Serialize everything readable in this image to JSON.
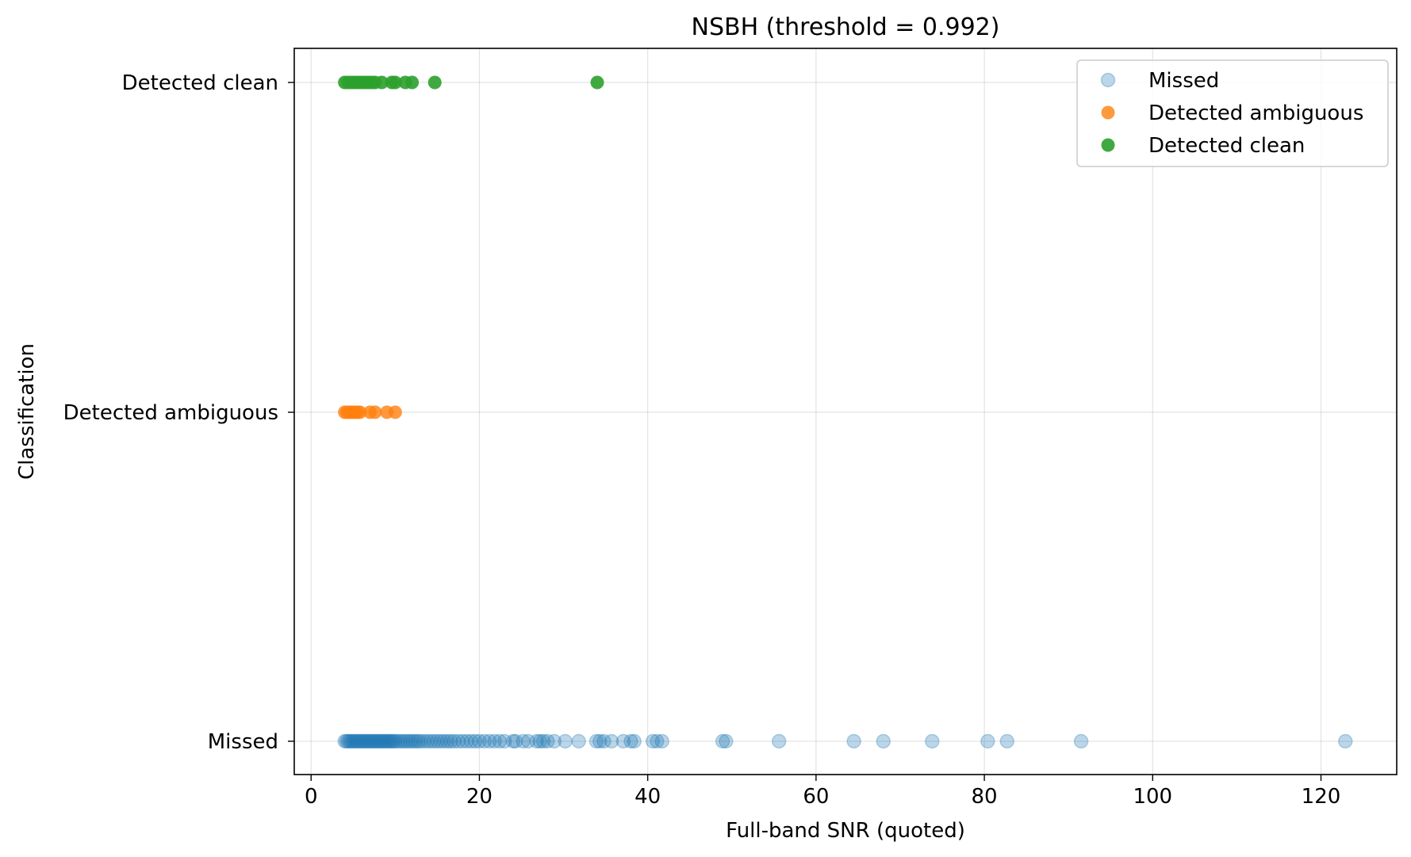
{
  "chart_data": {
    "type": "scatter",
    "title": "NSBH  (threshold = 0.992)",
    "xlabel": "Full-band SNR (quoted)",
    "ylabel": "Classification",
    "xlim": [
      -2,
      129
    ],
    "xticks": [
      0,
      20,
      40,
      60,
      80,
      100,
      120
    ],
    "xtick_labels": [
      "0",
      "20",
      "40",
      "60",
      "80",
      "100",
      "120"
    ],
    "categories": [
      "Missed",
      "Detected ambiguous",
      "Detected clean"
    ],
    "grid": true,
    "legend_position": "top-right",
    "series": [
      {
        "name": "Missed",
        "category": "Missed",
        "color": "#1f77b4",
        "alpha": 0.3,
        "x": [
          4.0,
          4.2,
          4.4,
          4.6,
          4.8,
          5.0,
          5.2,
          5.4,
          5.6,
          5.8,
          6.0,
          6.2,
          6.4,
          6.6,
          6.8,
          7.0,
          7.2,
          7.4,
          7.6,
          7.8,
          8.0,
          8.2,
          8.4,
          8.6,
          8.8,
          9.0,
          9.2,
          9.4,
          9.6,
          9.8,
          10.0,
          10.3,
          10.6,
          10.9,
          11.2,
          11.5,
          11.8,
          12.1,
          12.4,
          12.7,
          13.0,
          13.4,
          13.8,
          14.2,
          14.6,
          15.0,
          15.4,
          15.8,
          16.2,
          16.6,
          17.0,
          17.5,
          18.0,
          18.5,
          19.0,
          19.5,
          20.0,
          20.6,
          21.2,
          21.8,
          22.4,
          23.0,
          24.0,
          24.3,
          25.2,
          25.8,
          26.8,
          27.2,
          27.6,
          28.1,
          28.9,
          30.2,
          31.8,
          33.9,
          34.3,
          34.8,
          35.7,
          37.1,
          38.0,
          38.4,
          40.6,
          41.1,
          41.7,
          48.9,
          49.3,
          55.6,
          64.5,
          68.0,
          73.8,
          80.4,
          82.7,
          91.5,
          122.9
        ]
      },
      {
        "name": "Detected ambiguous",
        "category": "Detected ambiguous",
        "color": "#ff7f0e",
        "alpha": 0.8,
        "x": [
          4.0,
          4.3,
          4.6,
          4.9,
          5.2,
          5.5,
          5.8,
          7.0,
          7.6,
          9.0,
          10.0
        ]
      },
      {
        "name": "Detected clean",
        "category": "Detected clean",
        "color": "#2ca02c",
        "alpha": 0.9,
        "x": [
          4.0,
          4.4,
          4.8,
          5.2,
          5.6,
          6.0,
          6.4,
          6.8,
          7.2,
          7.6,
          8.4,
          9.6,
          10.0,
          11.2,
          12.0,
          14.7,
          34.0
        ]
      }
    ]
  }
}
